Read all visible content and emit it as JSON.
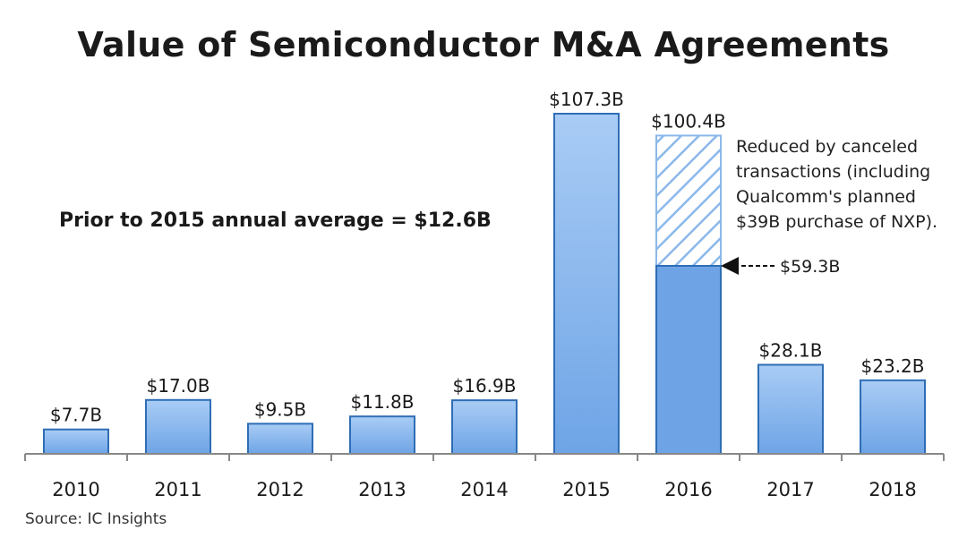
{
  "chart_data": {
    "type": "bar",
    "title": "Value of Semiconductor M&A Agreements",
    "categories": [
      "2010",
      "2011",
      "2012",
      "2013",
      "2014",
      "2015",
      "2016",
      "2017",
      "2018"
    ],
    "values": [
      7.7,
      17.0,
      9.5,
      11.8,
      16.9,
      107.3,
      100.4,
      28.1,
      23.2
    ],
    "value_labels": [
      "$7.7B",
      "$17.0B",
      "$9.5B",
      "$11.8B",
      "$16.9B",
      "$107.3B",
      "$100.4B",
      "$28.1B",
      "$23.2B"
    ],
    "unit": "$B",
    "ylim": [
      0,
      110
    ],
    "grid": false,
    "reduced": {
      "category": "2016",
      "value": 59.3,
      "label": "$59.3B",
      "note_lines": [
        "Reduced by canceled",
        "transactions (including",
        "Qualcomm's planned",
        "$39B purchase of NXP)."
      ]
    },
    "average_note": "Prior to 2015 annual average = $12.6B",
    "source": "Source: IC Insights"
  },
  "colors": {
    "bar_fill": "#6ea4e6",
    "bar_top": "#a9ccf5",
    "bar_stroke": "#2f6db5",
    "hatch_stroke": "#8bb8ea",
    "axis": "#888888"
  }
}
